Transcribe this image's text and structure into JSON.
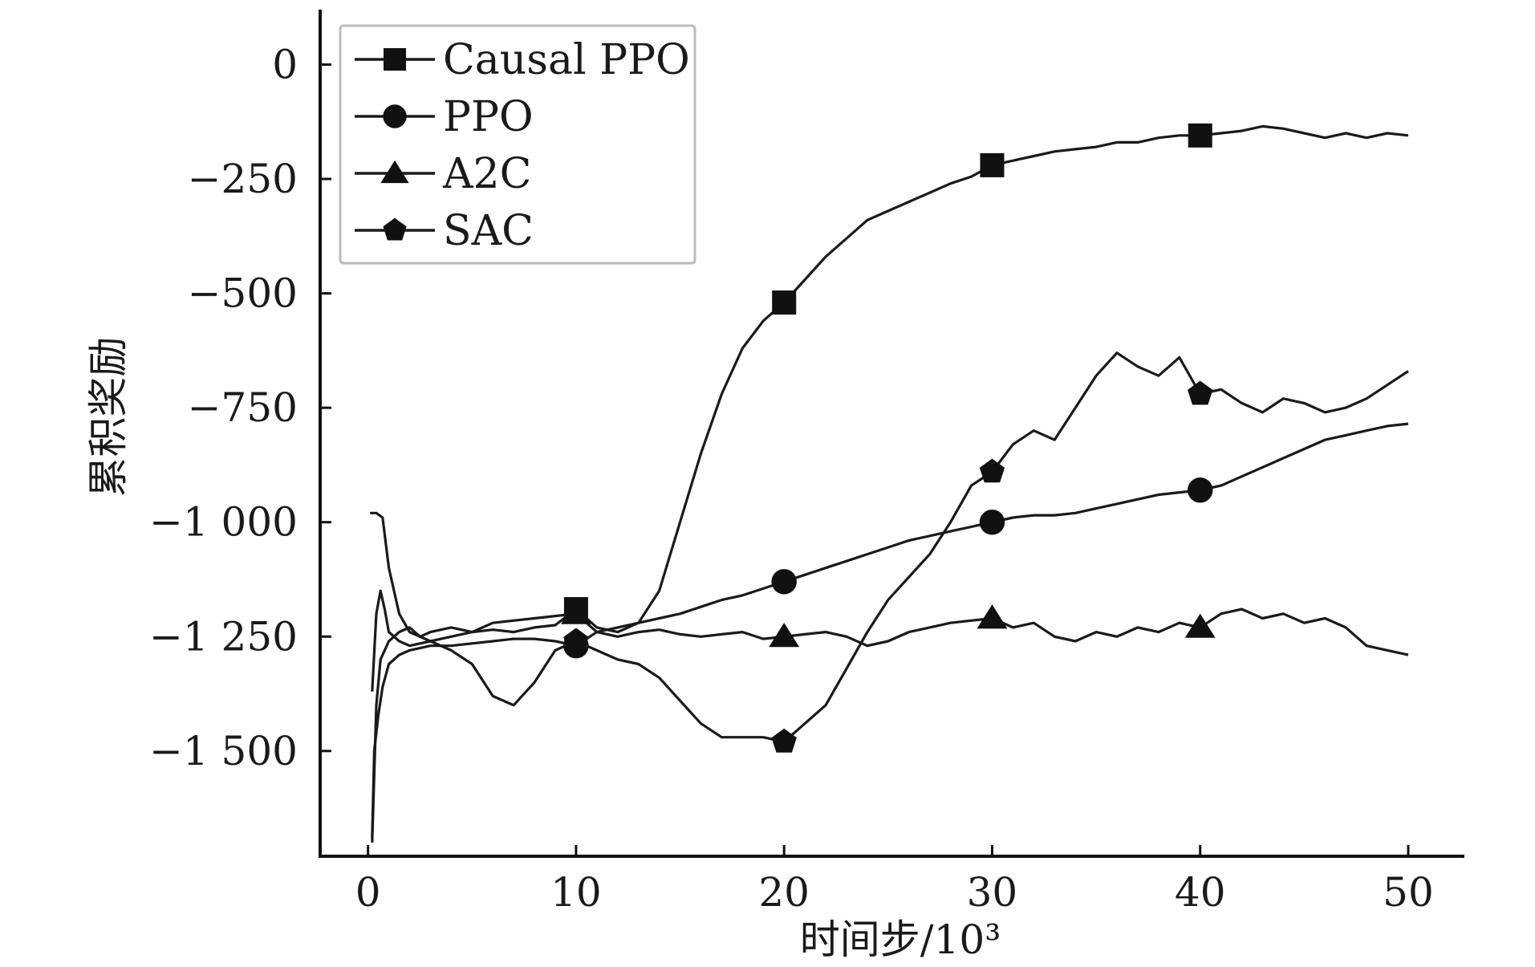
{
  "chart_data": {
    "type": "line",
    "xlabel": "时间步/10³",
    "ylabel": "累积奖励",
    "xlim": [
      -2.3,
      52.7
    ],
    "ylim": [
      -1730,
      120
    ],
    "xticks": [
      0,
      10,
      20,
      30,
      40,
      50
    ],
    "xtick_labels": [
      "0",
      "10",
      "20",
      "30",
      "40",
      "50"
    ],
    "yticks": [
      0,
      -250,
      -500,
      -750,
      -1000,
      -1250,
      -1500
    ],
    "ytick_labels": [
      "0",
      "−250",
      "−500",
      "−750",
      "−1 000",
      "−1 250",
      "−1 500"
    ],
    "grid": false,
    "legend_position": "top-left",
    "series": [
      {
        "name": "Causal PPO",
        "marker": "square",
        "markers_at": [
          10,
          20,
          30,
          40
        ],
        "points": [
          [
            0.2,
            -1370
          ],
          [
            0.4,
            -1200
          ],
          [
            0.6,
            -1150
          ],
          [
            0.8,
            -1190
          ],
          [
            1,
            -1240
          ],
          [
            1.5,
            -1260
          ],
          [
            2,
            -1270
          ],
          [
            3,
            -1260
          ],
          [
            4,
            -1250
          ],
          [
            5,
            -1240
          ],
          [
            6,
            -1235
          ],
          [
            7,
            -1240
          ],
          [
            8,
            -1230
          ],
          [
            9,
            -1225
          ],
          [
            10,
            -1190
          ],
          [
            11,
            -1230
          ],
          [
            12,
            -1240
          ],
          [
            13,
            -1220
          ],
          [
            14,
            -1150
          ],
          [
            15,
            -1000
          ],
          [
            16,
            -850
          ],
          [
            17,
            -720
          ],
          [
            18,
            -620
          ],
          [
            19,
            -560
          ],
          [
            20,
            -520
          ],
          [
            21,
            -470
          ],
          [
            22,
            -420
          ],
          [
            23,
            -380
          ],
          [
            24,
            -340
          ],
          [
            25,
            -320
          ],
          [
            26,
            -300
          ],
          [
            27,
            -280
          ],
          [
            28,
            -260
          ],
          [
            29,
            -245
          ],
          [
            30,
            -220
          ],
          [
            31,
            -210
          ],
          [
            32,
            -200
          ],
          [
            33,
            -190
          ],
          [
            34,
            -185
          ],
          [
            35,
            -180
          ],
          [
            36,
            -170
          ],
          [
            37,
            -170
          ],
          [
            38,
            -160
          ],
          [
            39,
            -155
          ],
          [
            40,
            -155
          ],
          [
            41,
            -150
          ],
          [
            42,
            -145
          ],
          [
            43,
            -135
          ],
          [
            44,
            -140
          ],
          [
            45,
            -150
          ],
          [
            46,
            -160
          ],
          [
            47,
            -150
          ],
          [
            48,
            -160
          ],
          [
            49,
            -150
          ],
          [
            50,
            -155
          ]
        ]
      },
      {
        "name": "PPO",
        "marker": "circle",
        "markers_at": [
          10,
          20,
          30,
          40
        ],
        "points": [
          [
            0.2,
            -1690
          ],
          [
            0.3,
            -1500
          ],
          [
            0.5,
            -1420
          ],
          [
            0.7,
            -1360
          ],
          [
            1,
            -1310
          ],
          [
            1.5,
            -1290
          ],
          [
            2,
            -1280
          ],
          [
            3,
            -1270
          ],
          [
            4,
            -1270
          ],
          [
            5,
            -1265
          ],
          [
            6,
            -1260
          ],
          [
            7,
            -1255
          ],
          [
            8,
            -1255
          ],
          [
            9,
            -1260
          ],
          [
            10,
            -1270
          ],
          [
            11,
            -1240
          ],
          [
            12,
            -1230
          ],
          [
            13,
            -1220
          ],
          [
            14,
            -1210
          ],
          [
            15,
            -1200
          ],
          [
            16,
            -1185
          ],
          [
            17,
            -1170
          ],
          [
            18,
            -1160
          ],
          [
            19,
            -1145
          ],
          [
            20,
            -1130
          ],
          [
            21,
            -1115
          ],
          [
            22,
            -1100
          ],
          [
            23,
            -1085
          ],
          [
            24,
            -1070
          ],
          [
            25,
            -1055
          ],
          [
            26,
            -1040
          ],
          [
            27,
            -1030
          ],
          [
            28,
            -1020
          ],
          [
            29,
            -1010
          ],
          [
            30,
            -1000
          ],
          [
            31,
            -990
          ],
          [
            32,
            -985
          ],
          [
            33,
            -985
          ],
          [
            34,
            -980
          ],
          [
            35,
            -970
          ],
          [
            36,
            -960
          ],
          [
            37,
            -950
          ],
          [
            38,
            -940
          ],
          [
            39,
            -935
          ],
          [
            40,
            -930
          ],
          [
            41,
            -920
          ],
          [
            42,
            -900
          ],
          [
            43,
            -880
          ],
          [
            44,
            -860
          ],
          [
            45,
            -840
          ],
          [
            46,
            -820
          ],
          [
            47,
            -810
          ],
          [
            48,
            -800
          ],
          [
            49,
            -790
          ],
          [
            50,
            -785
          ]
        ]
      },
      {
        "name": "A2C",
        "marker": "triangle",
        "markers_at": [
          10,
          20,
          30,
          40
        ],
        "points": [
          [
            0.2,
            -1700
          ],
          [
            0.4,
            -1400
          ],
          [
            0.6,
            -1300
          ],
          [
            1,
            -1260
          ],
          [
            1.5,
            -1240
          ],
          [
            2,
            -1230
          ],
          [
            2.5,
            -1250
          ],
          [
            3,
            -1240
          ],
          [
            4,
            -1230
          ],
          [
            5,
            -1240
          ],
          [
            6,
            -1220
          ],
          [
            7,
            -1215
          ],
          [
            8,
            -1210
          ],
          [
            9,
            -1205
          ],
          [
            10,
            -1200
          ],
          [
            11,
            -1240
          ],
          [
            12,
            -1250
          ],
          [
            13,
            -1240
          ],
          [
            14,
            -1235
          ],
          [
            15,
            -1245
          ],
          [
            16,
            -1250
          ],
          [
            17,
            -1245
          ],
          [
            18,
            -1240
          ],
          [
            19,
            -1255
          ],
          [
            20,
            -1250
          ],
          [
            21,
            -1245
          ],
          [
            22,
            -1240
          ],
          [
            23,
            -1250
          ],
          [
            24,
            -1270
          ],
          [
            25,
            -1260
          ],
          [
            26,
            -1240
          ],
          [
            27,
            -1230
          ],
          [
            28,
            -1220
          ],
          [
            29,
            -1215
          ],
          [
            30,
            -1210
          ],
          [
            31,
            -1230
          ],
          [
            32,
            -1220
          ],
          [
            33,
            -1250
          ],
          [
            34,
            -1260
          ],
          [
            35,
            -1240
          ],
          [
            36,
            -1250
          ],
          [
            37,
            -1230
          ],
          [
            38,
            -1240
          ],
          [
            39,
            -1220
          ],
          [
            40,
            -1230
          ],
          [
            41,
            -1200
          ],
          [
            42,
            -1190
          ],
          [
            43,
            -1210
          ],
          [
            44,
            -1200
          ],
          [
            45,
            -1220
          ],
          [
            46,
            -1210
          ],
          [
            47,
            -1230
          ],
          [
            48,
            -1270
          ],
          [
            49,
            -1280
          ],
          [
            50,
            -1290
          ]
        ]
      },
      {
        "name": "SAC",
        "marker": "pentagon",
        "markers_at": [
          10,
          20,
          30,
          40
        ],
        "points": [
          [
            0.1,
            -980
          ],
          [
            0.4,
            -980
          ],
          [
            0.7,
            -990
          ],
          [
            1,
            -1100
          ],
          [
            1.5,
            -1200
          ],
          [
            2,
            -1240
          ],
          [
            3,
            -1260
          ],
          [
            4,
            -1280
          ],
          [
            5,
            -1310
          ],
          [
            6,
            -1380
          ],
          [
            7,
            -1400
          ],
          [
            8,
            -1350
          ],
          [
            9,
            -1280
          ],
          [
            10,
            -1260
          ],
          [
            11,
            -1280
          ],
          [
            12,
            -1300
          ],
          [
            13,
            -1310
          ],
          [
            14,
            -1340
          ],
          [
            15,
            -1390
          ],
          [
            16,
            -1440
          ],
          [
            17,
            -1470
          ],
          [
            18,
            -1470
          ],
          [
            19,
            -1470
          ],
          [
            20,
            -1480
          ],
          [
            21,
            -1440
          ],
          [
            22,
            -1400
          ],
          [
            23,
            -1320
          ],
          [
            24,
            -1240
          ],
          [
            25,
            -1170
          ],
          [
            26,
            -1120
          ],
          [
            27,
            -1070
          ],
          [
            28,
            -1000
          ],
          [
            29,
            -920
          ],
          [
            30,
            -890
          ],
          [
            31,
            -830
          ],
          [
            32,
            -800
          ],
          [
            33,
            -820
          ],
          [
            34,
            -750
          ],
          [
            35,
            -680
          ],
          [
            36,
            -630
          ],
          [
            37,
            -660
          ],
          [
            38,
            -680
          ],
          [
            39,
            -640
          ],
          [
            40,
            -720
          ],
          [
            41,
            -710
          ],
          [
            42,
            -740
          ],
          [
            43,
            -760
          ],
          [
            44,
            -730
          ],
          [
            45,
            -740
          ],
          [
            46,
            -760
          ],
          [
            47,
            -750
          ],
          [
            48,
            -730
          ],
          [
            49,
            -700
          ],
          [
            50,
            -670
          ]
        ]
      }
    ]
  }
}
